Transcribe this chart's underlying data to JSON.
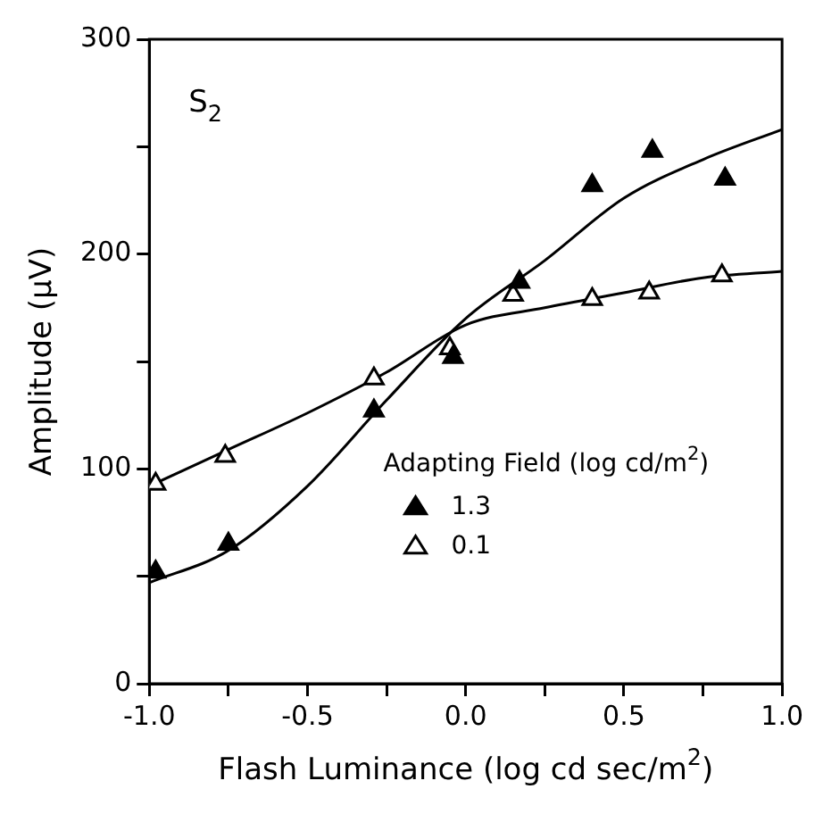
{
  "chart_data": {
    "type": "scatter",
    "xlabel": "Flash Luminance (log cd sec/m$^{2}$)",
    "ylabel": "Amplitude (µV)",
    "legend_title": "Adapting Field (log cd/m$^{2}$)",
    "annotations": [
      "S$_{2}$"
    ],
    "xlim": [
      -1,
      1
    ],
    "ylim": [
      0,
      300
    ],
    "xticks": [
      {
        "value": -1,
        "label": "-1.0"
      },
      {
        "value": -0.75,
        "label": null
      },
      {
        "value": -0.5,
        "label": "-0.5"
      },
      {
        "value": -0.25,
        "label": null
      },
      {
        "value": 0,
        "label": "0.0"
      },
      {
        "value": 0.25,
        "label": null
      },
      {
        "value": 0.5,
        "label": "0.5"
      },
      {
        "value": 0.75,
        "label": null
      },
      {
        "value": 1,
        "label": "1.0"
      }
    ],
    "yticks": [
      0,
      {
        "value": 50,
        "label": null
      },
      100,
      {
        "value": 150,
        "label": null
      },
      200,
      {
        "value": 250,
        "label": null
      },
      300
    ],
    "grid": false,
    "legend": "bottom",
    "marker": "triangle",
    "series": [
      {
        "name": "1.3",
        "type": "scatter",
        "color": "#000000",
        "x": [
          -0.98,
          -0.75,
          -0.29,
          -0.04,
          0.17,
          0.4,
          0.59,
          0.82
        ],
        "values": [
          52,
          65,
          127,
          152,
          187,
          232,
          248,
          235
        ]
      },
      {
        "name": "0.1",
        "type": "scatter",
        "color": "#ffffff",
        "x": [
          -0.98,
          -0.76,
          -0.29,
          -0.05,
          0.15,
          0.4,
          0.58,
          0.81
        ],
        "values": [
          93,
          106,
          142,
          156,
          181,
          179,
          182,
          190
        ]
      },
      {
        "type": "line",
        "color": "#000000",
        "marker": "none",
        "x": [
          -1,
          -0.75,
          -0.5,
          -0.25,
          0,
          0.25,
          0.5,
          0.75,
          1
        ],
        "values": [
          47,
          62,
          92,
          132,
          170,
          197,
          226,
          244,
          258
        ]
      },
      {
        "type": "line",
        "color": "#000000",
        "marker": "none",
        "x": [
          -1,
          -0.75,
          -0.5,
          -0.25,
          0,
          0.25,
          0.5,
          0.75,
          1
        ],
        "values": [
          92,
          109,
          126,
          145,
          167,
          175,
          182,
          189,
          192
        ]
      }
    ]
  }
}
